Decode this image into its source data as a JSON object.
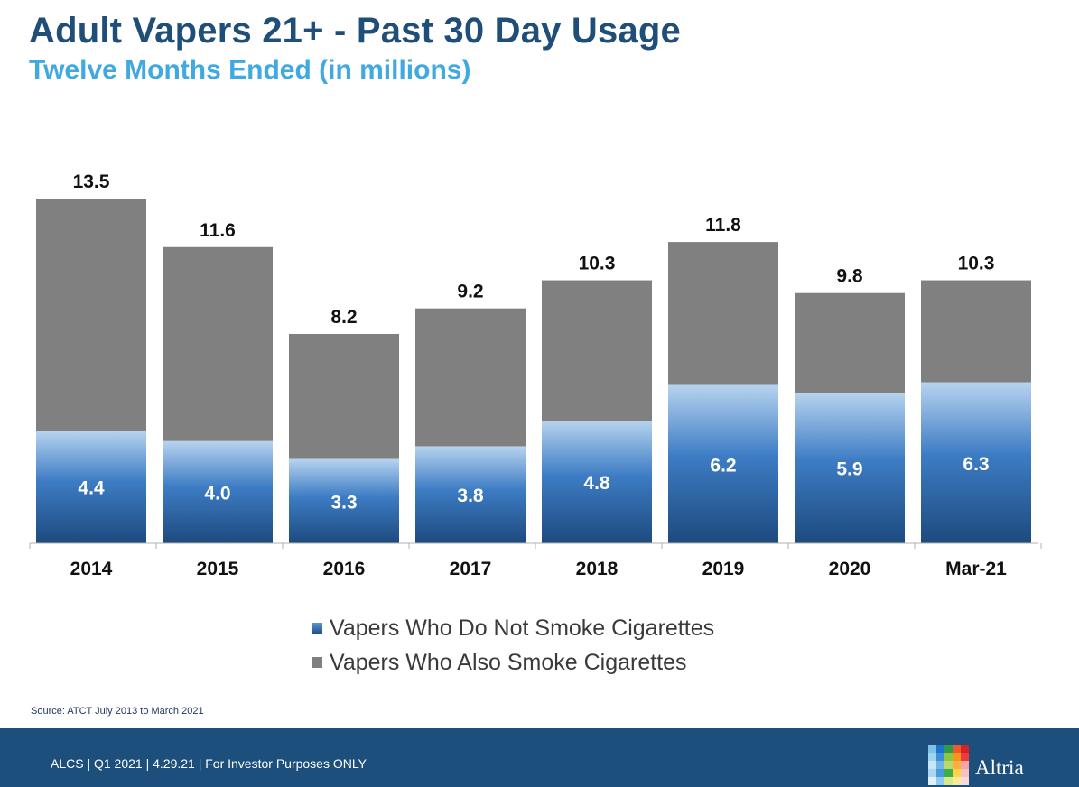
{
  "title": "Adult Vapers 21+ - Past 30 Day Usage",
  "subtitle": "Twelve Months Ended (in millions)",
  "chart_data": {
    "type": "bar",
    "stacked": true,
    "categories": [
      "2014",
      "2015",
      "2016",
      "2017",
      "2018",
      "2019",
      "2020",
      "Mar-21"
    ],
    "series": [
      {
        "name": "Vapers Who Do Not Smoke Cigarettes",
        "values": [
          4.4,
          4.0,
          3.3,
          3.8,
          4.8,
          6.2,
          5.9,
          6.3
        ],
        "color": "#2f6bb3"
      },
      {
        "name": "Vapers Who Also Smoke Cigarettes",
        "values": [
          9.1,
          7.6,
          4.9,
          5.4,
          5.5,
          5.6,
          3.9,
          4.0
        ],
        "color": "#808080"
      }
    ],
    "totals": [
      13.5,
      11.6,
      8.2,
      9.2,
      10.3,
      11.8,
      9.8,
      10.3
    ],
    "bottom_labels": [
      "4.4",
      "4.0",
      "3.3",
      "3.8",
      "4.8",
      "6.2",
      "5.9",
      "6.3"
    ],
    "total_labels": [
      "13.5",
      "11.6",
      "8.2",
      "9.2",
      "10.3",
      "11.8",
      "9.8",
      "10.3"
    ],
    "ylim": [
      0,
      13.5
    ],
    "grid": false,
    "legend_position": "bottom-center"
  },
  "legend": {
    "item1": "Vapers Who Do Not Smoke Cigarettes",
    "item2": "Vapers Who Also Smoke Cigarettes"
  },
  "source": "Source:  ATCT July 2013 to March 2021",
  "footer": {
    "text": "ALCS | Q1 2021 | 4.29.21 | For Investor Purposes ONLY",
    "brand": "Altria"
  },
  "logo_colors": [
    "#7fbfe8",
    "#1a75c8",
    "#2f9a4a",
    "#f05a28",
    "#d6202a",
    "#9fd4f0",
    "#3f8fd6",
    "#8fc63f",
    "#f7941d",
    "#ee3a3a",
    "#c8e6f7",
    "#6fb4e4",
    "#b8d96f",
    "#fbb040",
    "#f4a6a6",
    "#aad7f2",
    "#4a9bd8",
    "#3fae49",
    "#ffd24a",
    "#f6c1c1",
    "#dff0fb",
    "#8fc9ee",
    "#d6ea8a",
    "#ffe89a",
    "#fbd9d9"
  ]
}
